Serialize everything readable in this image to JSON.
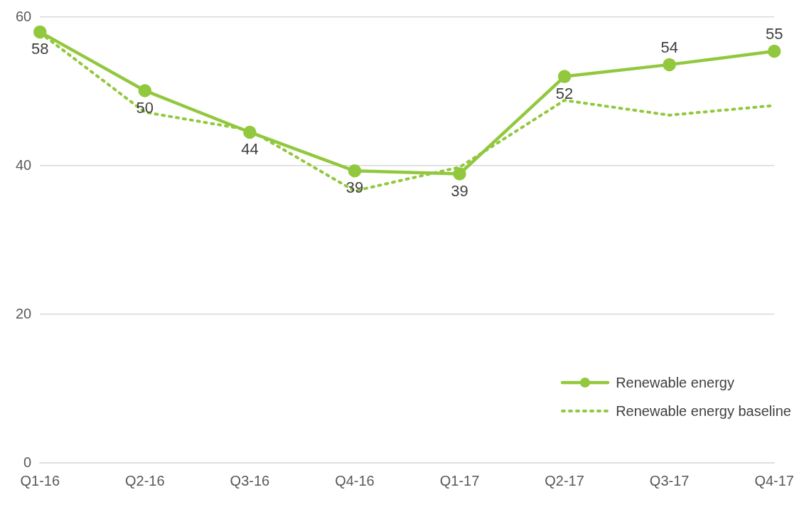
{
  "chart_data": {
    "type": "line",
    "categories": [
      "Q1-16",
      "Q2-16",
      "Q3-16",
      "Q4-16",
      "Q1-17",
      "Q2-17",
      "Q3-17",
      "Q4-17"
    ],
    "series": [
      {
        "name": "Renewable energy",
        "color": "#92c83e",
        "values": [
          58.0,
          50.1,
          44.5,
          39.3,
          38.9,
          52.0,
          53.6,
          55.4
        ],
        "value_labels": [
          "58",
          "50",
          "44",
          "39",
          "39",
          "52",
          "54",
          "55"
        ],
        "marker": "circle",
        "line_style": "solid"
      },
      {
        "name": "Renewable energy baseline",
        "color": "#92c83e",
        "values": [
          57.9,
          47.2,
          44.8,
          36.6,
          39.8,
          48.8,
          46.8,
          48.1
        ],
        "marker": "none",
        "line_style": "dotted"
      }
    ],
    "ylim": [
      0,
      60
    ],
    "yticks": [
      0,
      20,
      40,
      60
    ],
    "grid": "y",
    "legend": "bottom right"
  }
}
